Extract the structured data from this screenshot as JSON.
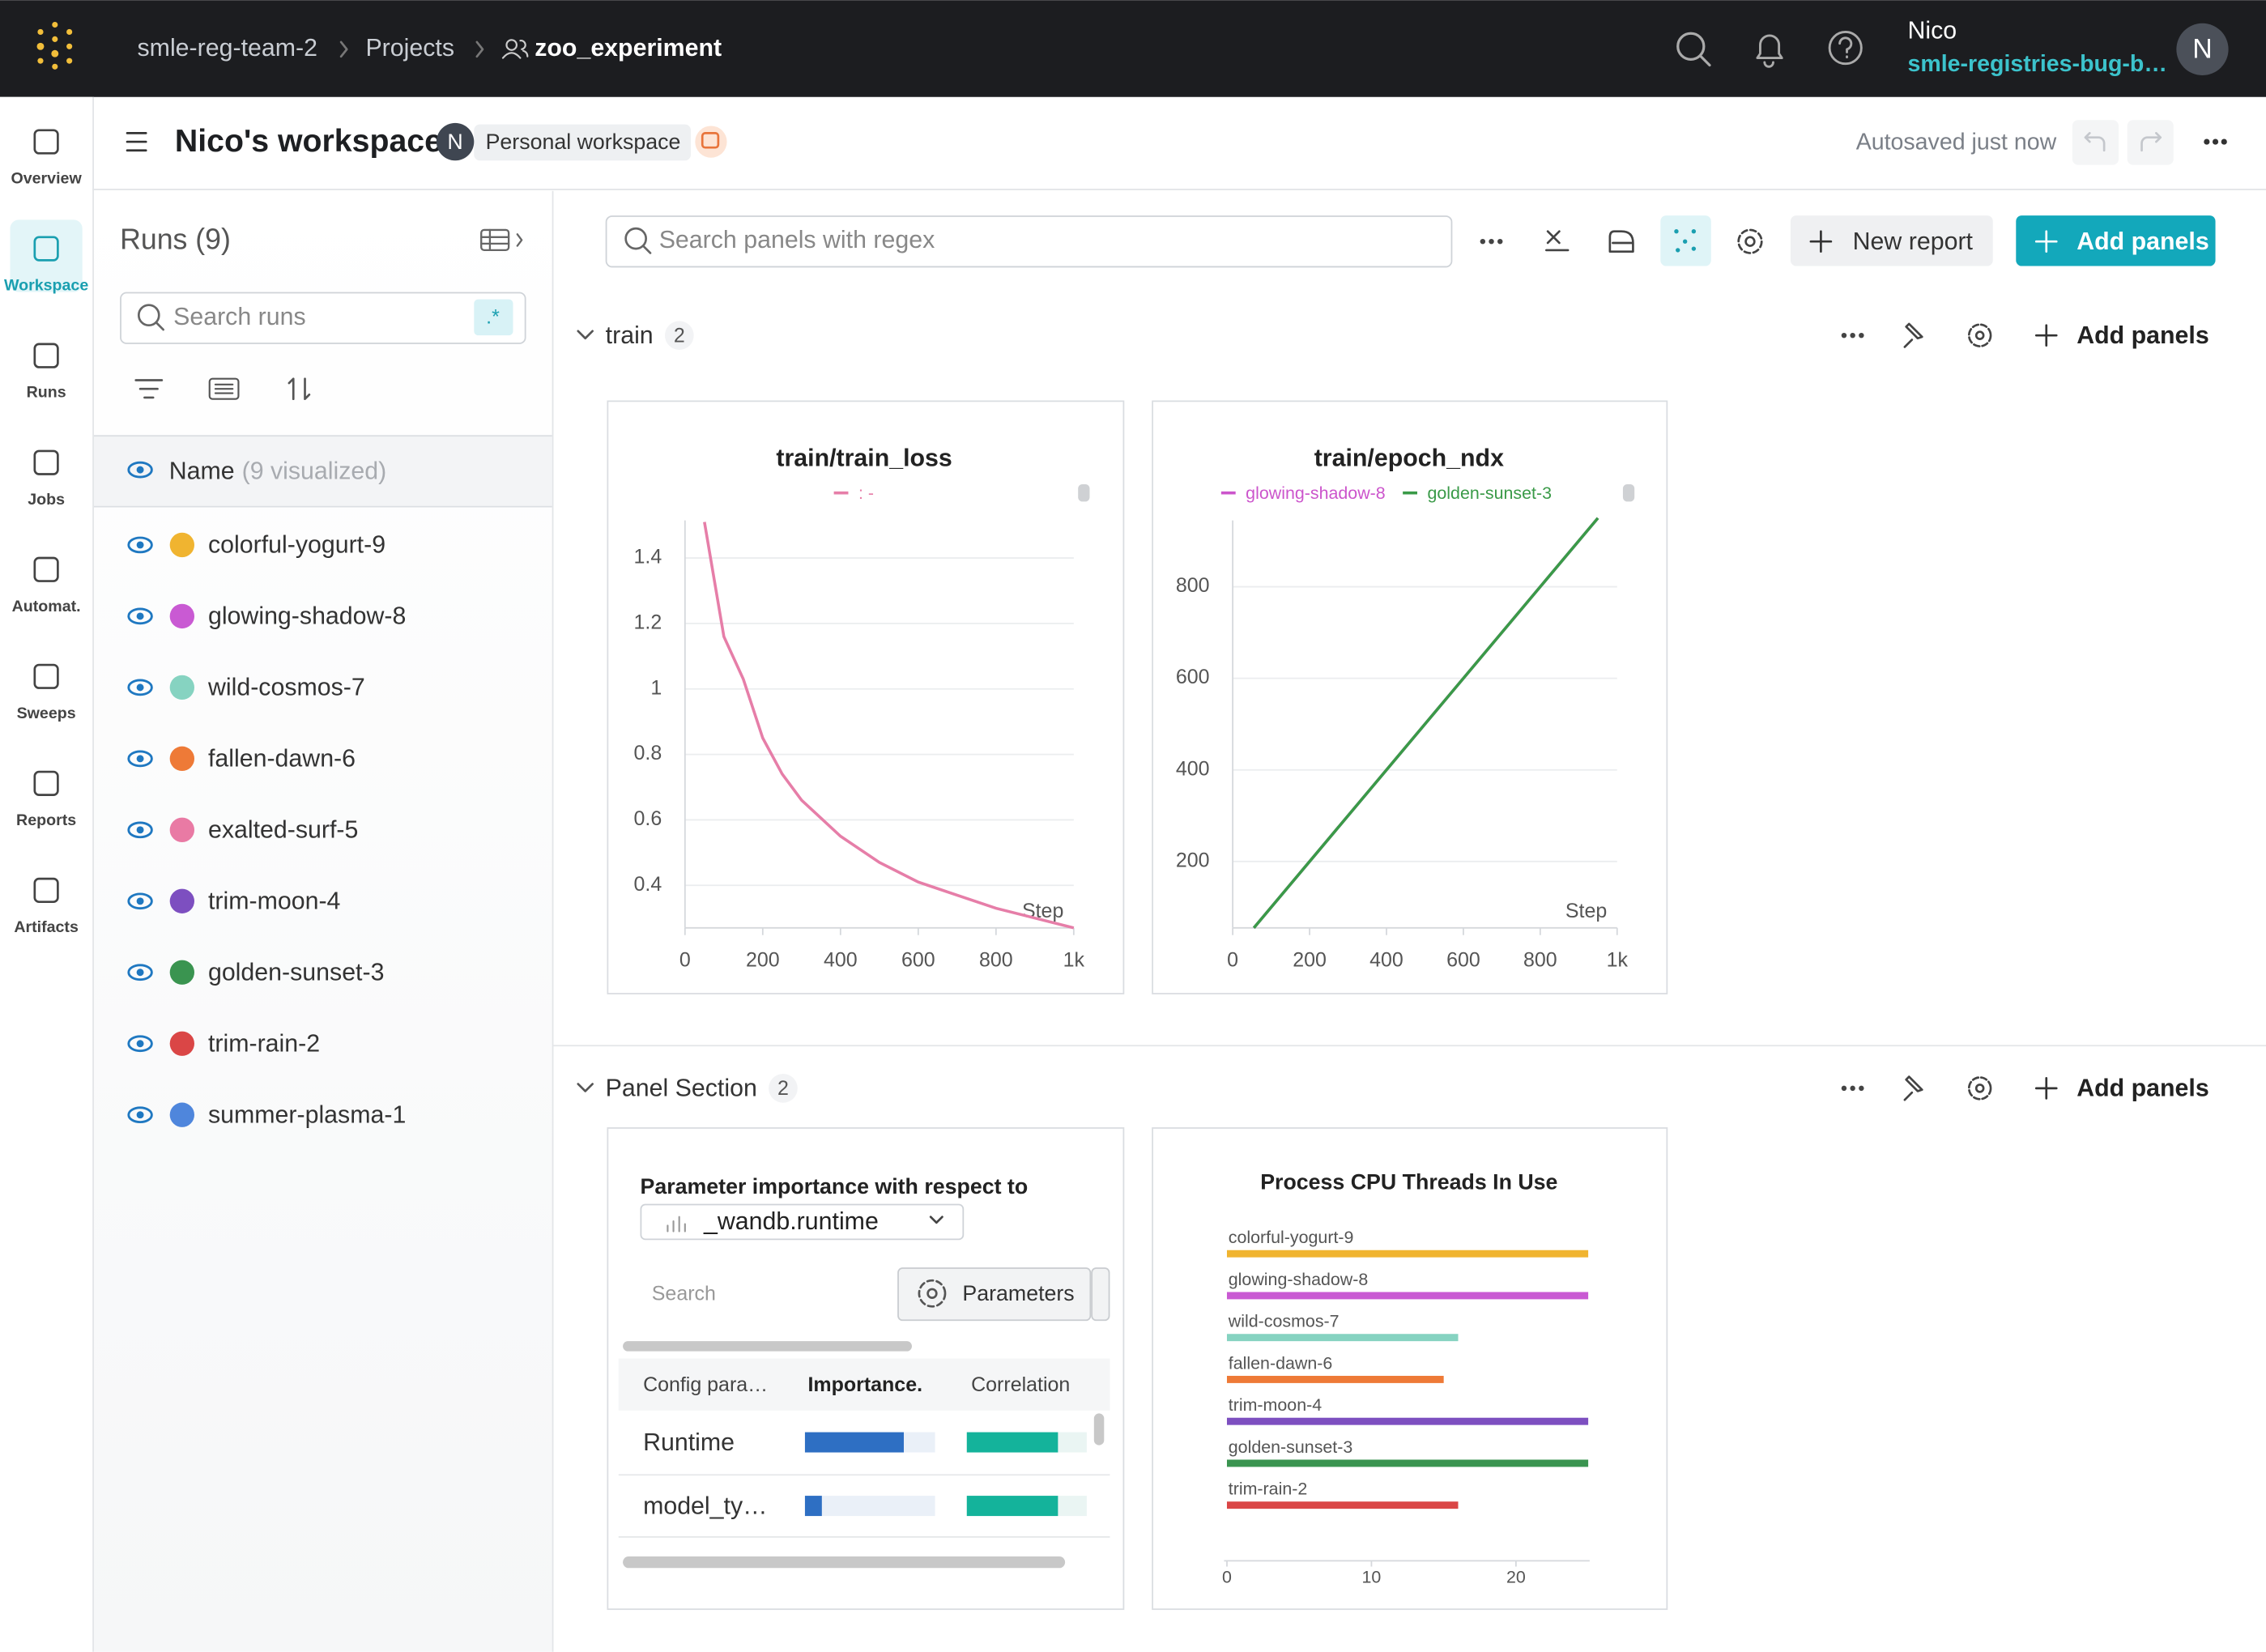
{
  "topbar": {
    "breadcrumb": [
      "smle-reg-team-2",
      "Projects",
      "zoo_experiment"
    ],
    "user_name": "Nico",
    "user_org": "smle-registries-bug-b…",
    "avatar": "N"
  },
  "nav": [
    "Overview",
    "Workspace",
    "Runs",
    "Jobs",
    "Automat.",
    "Sweeps",
    "Reports",
    "Artifacts"
  ],
  "header": {
    "title": "Nico's workspace",
    "avatar": "N",
    "badge": "Personal workspace",
    "status": "Autosaved just now"
  },
  "runs": {
    "title": "Runs (9)",
    "search_placeholder": "Search runs",
    "regex": ".*",
    "column": "Name",
    "visualized": "(9 visualized)",
    "items": [
      {
        "name": "colorful-yogurt-9",
        "color": "#f0b430"
      },
      {
        "name": "glowing-shadow-8",
        "color": "#c95ad3"
      },
      {
        "name": "wild-cosmos-7",
        "color": "#86d3c1"
      },
      {
        "name": "fallen-dawn-6",
        "color": "#ee7a37"
      },
      {
        "name": "exalted-surf-5",
        "color": "#e97aa4"
      },
      {
        "name": "trim-moon-4",
        "color": "#7d4fc0"
      },
      {
        "name": "golden-sunset-3",
        "color": "#3a9450"
      },
      {
        "name": "trim-rain-2",
        "color": "#da4646"
      },
      {
        "name": "summer-plasma-1",
        "color": "#4f86dc"
      }
    ]
  },
  "toolbar": {
    "search_placeholder": "Search panels with regex",
    "new_report": "New report",
    "add_panels": "Add panels"
  },
  "sections": [
    {
      "name": "train",
      "count": 2,
      "add_panels": "Add panels"
    },
    {
      "name": "Panel Section",
      "count": 2,
      "add_panels": "Add panels"
    }
  ],
  "chart_data": [
    {
      "type": "line",
      "title": "train/train_loss",
      "xlabel": "Step",
      "x": [
        50,
        100,
        150,
        200,
        250,
        300,
        400,
        500,
        600,
        700,
        800,
        900,
        1000
      ],
      "series": [
        {
          "name": ": -",
          "color": "#e67ea8",
          "values": [
            1.51,
            1.16,
            1.03,
            0.85,
            0.74,
            0.66,
            0.55,
            0.47,
            0.41,
            0.37,
            0.33,
            0.3,
            0.27
          ]
        }
      ],
      "xlim": [
        0,
        1000
      ],
      "ylim": [
        0.27,
        1.515
      ],
      "xticks": [
        0,
        200,
        400,
        600,
        800,
        {
          "value": 1000,
          "label": "1k"
        }
      ],
      "yticks": [
        0.4,
        0.6,
        0.8,
        1,
        1.2,
        1.4
      ],
      "grid": true
    },
    {
      "type": "line",
      "title": "train/epoch_ndx",
      "xlabel": "Step",
      "x": [
        55,
        950
      ],
      "series": [
        {
          "name": "glowing-shadow-8",
          "color": "#cc55cc",
          "values": [
            55,
            950
          ]
        },
        {
          "name": "golden-sunset-3",
          "color": "#3a9a48",
          "values": [
            55,
            950
          ]
        }
      ],
      "xlim": [
        0,
        1000
      ],
      "ylim": [
        55,
        945
      ],
      "xticks": [
        0,
        200,
        400,
        600,
        800,
        {
          "value": 1000,
          "label": "1k"
        }
      ],
      "yticks": [
        200,
        400,
        600,
        800
      ],
      "grid": true
    },
    {
      "type": "hbar",
      "title": "Process CPU Threads In Use",
      "categories": [
        "colorful-yogurt-9",
        "glowing-shadow-8",
        "wild-cosmos-7",
        "fallen-dawn-6",
        "trim-moon-4",
        "golden-sunset-3",
        "trim-rain-2"
      ],
      "values": [
        25,
        25,
        16,
        15,
        25,
        25,
        16
      ],
      "colors": [
        "#f0b430",
        "#c95ad3",
        "#86d3c1",
        "#ee7a37",
        "#7d4fc0",
        "#3a9450",
        "#da4646"
      ],
      "xlim": [
        0,
        25
      ],
      "xticks": [
        0,
        10,
        20
      ]
    }
  ],
  "param_panel": {
    "title": "Parameter importance with respect to",
    "metric": "_wandb.runtime",
    "search_placeholder": "Search",
    "button": "Parameters",
    "columns": [
      "Config para…",
      "Importance.",
      "Correlation"
    ],
    "rows": [
      {
        "name": "Runtime",
        "importance": 0.76,
        "correlation": 0.76
      },
      {
        "name": "model_ty…",
        "importance": 0.13,
        "correlation": 0.76
      }
    ]
  }
}
